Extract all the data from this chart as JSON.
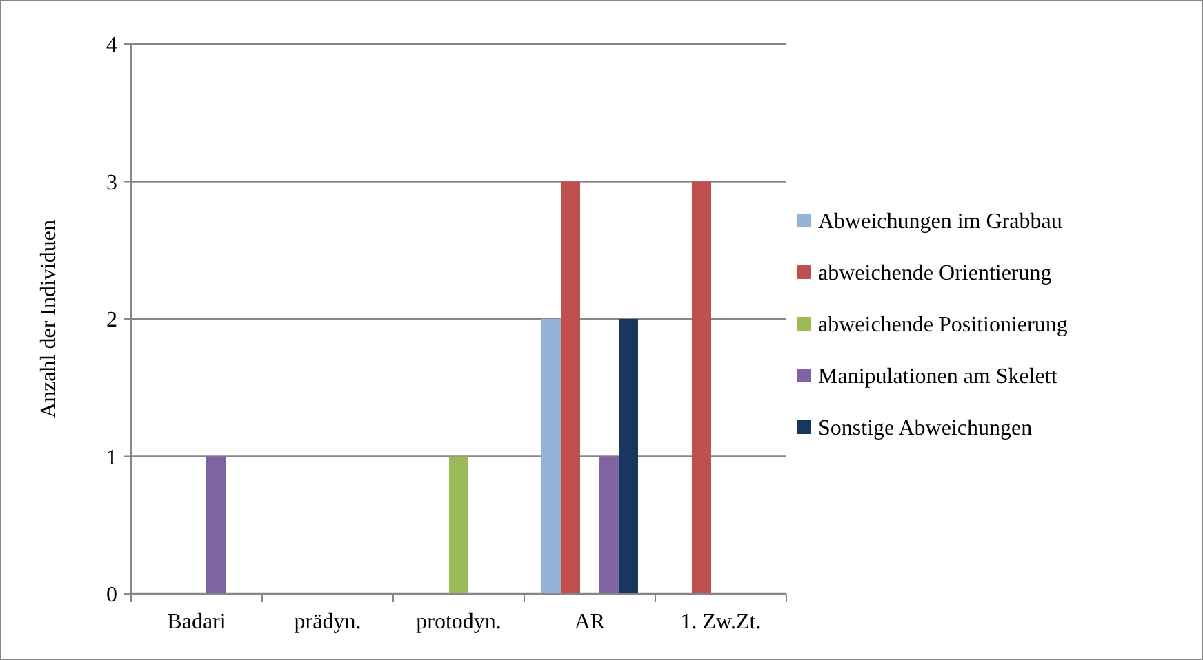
{
  "chart_data": {
    "type": "bar",
    "ylabel": "Anzahl der Individuen",
    "categories": [
      "Badari",
      "prädyn.",
      "protodyn.",
      "AR",
      "1. Zw.Zt."
    ],
    "series": [
      {
        "name": "Abweichungen im Grabbau",
        "color": "#95b3d7",
        "values": [
          0,
          0,
          0,
          2,
          0
        ]
      },
      {
        "name": "abweichende Orientierung",
        "color": "#c0504d",
        "values": [
          0,
          0,
          0,
          3,
          3
        ]
      },
      {
        "name": "abweichende Positionierung",
        "color": "#9bbb59",
        "values": [
          0,
          0,
          1,
          0,
          0
        ]
      },
      {
        "name": "Manipulationen am Skelett",
        "color": "#8064a2",
        "values": [
          1,
          0,
          0,
          1,
          0
        ]
      },
      {
        "name": "Sonstige Abweichungen",
        "color": "#17375e",
        "values": [
          0,
          0,
          0,
          2,
          0
        ]
      }
    ],
    "ylim": [
      0,
      4
    ],
    "yticks": [
      0,
      1,
      2,
      3,
      4
    ],
    "grid": "y",
    "legend": "right"
  }
}
